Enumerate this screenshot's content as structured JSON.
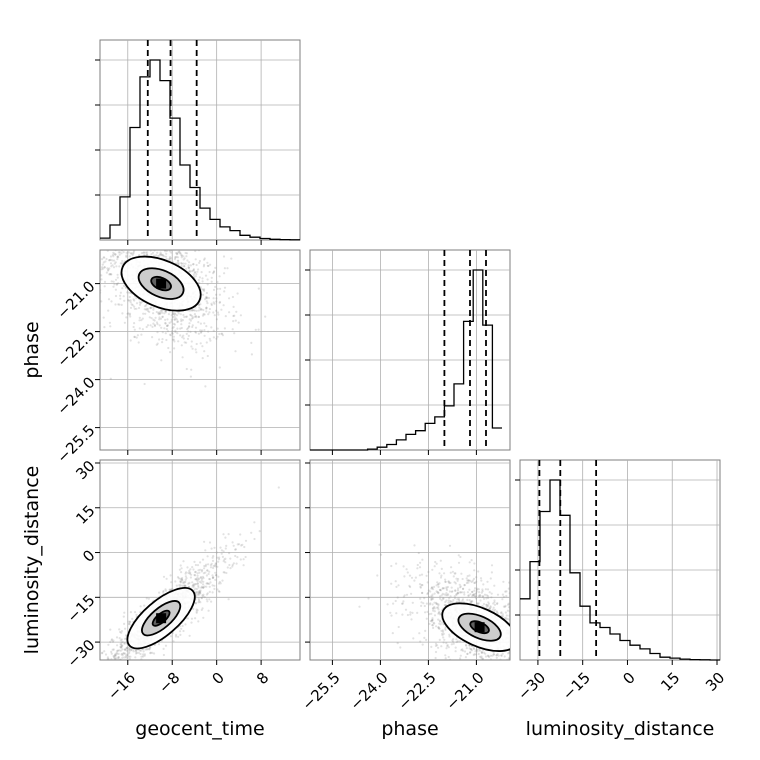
{
  "figure": {
    "type": "corner-plot"
  },
  "colors": {
    "line": "#000000",
    "grid": "#b0b0b0",
    "frame": "#7f7f7f",
    "points": "#8c8c8c"
  },
  "chart_data": {
    "type": "corner",
    "parameters": [
      {
        "name": "geocent_time",
        "label": "geocent_time",
        "range": [
          -21,
          15
        ],
        "ticks": [
          -16,
          -8,
          0,
          8
        ],
        "tick_labels": [
          "−16",
          "−8",
          "0",
          "8"
        ],
        "quantiles": [
          -12.4,
          -8.3,
          -3.6
        ],
        "histogram": {
          "edges": [
            -21,
            -19.2,
            -17.4,
            -15.6,
            -13.8,
            -12,
            -10.2,
            -8.4,
            -6.6,
            -4.8,
            -3,
            -1.2,
            0.6,
            2.4,
            4.2,
            6,
            7.8,
            9.6,
            11.4,
            13.2,
            15
          ],
          "counts": [
            0.01,
            0.08,
            0.23,
            0.6,
            0.87,
            0.96,
            0.85,
            0.65,
            0.4,
            0.28,
            0.17,
            0.11,
            0.07,
            0.05,
            0.025,
            0.015,
            0.008,
            0.004,
            0.002,
            0.001
          ]
        }
      },
      {
        "name": "phase",
        "label": "phase",
        "range": [
          -26.2,
          -19.95
        ],
        "ticks": [
          -25.5,
          -24.0,
          -22.5,
          -21.0
        ],
        "tick_labels": [
          "−25.5",
          "−24.0",
          "−22.5",
          "−21.0"
        ],
        "quantiles": [
          -22.0,
          -21.2,
          -20.7
        ],
        "histogram": {
          "edges": [
            -26.2,
            -25.9,
            -25.6,
            -25.3,
            -25.0,
            -24.7,
            -24.4,
            -24.1,
            -23.8,
            -23.5,
            -23.2,
            -22.9,
            -22.6,
            -22.3,
            -22.0,
            -21.7,
            -21.4,
            -21.1,
            -20.8,
            -20.5,
            -20.2
          ],
          "counts": [
            0.0,
            0.0,
            0.0,
            0.0,
            0.0,
            0.0,
            0.005,
            0.015,
            0.03,
            0.055,
            0.085,
            0.105,
            0.145,
            0.18,
            0.24,
            0.36,
            0.7,
            0.98,
            0.68,
            0.12
          ]
        }
      },
      {
        "name": "luminosity_distance",
        "label": "luminosity_distance",
        "range": [
          -36,
          31
        ],
        "ticks": [
          -30,
          -15,
          0,
          15,
          30
        ],
        "tick_labels": [
          "−30",
          "−15",
          "0",
          "15",
          "30"
        ],
        "quantiles": [
          -29.5,
          -22.5,
          -10.5
        ],
        "histogram": {
          "edges": [
            -36,
            -32.65,
            -29.3,
            -25.95,
            -22.6,
            -19.25,
            -15.9,
            -12.55,
            -9.2,
            -5.85,
            -2.5,
            0.85,
            4.2,
            7.55,
            10.9,
            14.25,
            17.6,
            20.95,
            24.3,
            27.65,
            31
          ],
          "counts": [
            0.33,
            0.53,
            0.8,
            0.97,
            0.78,
            0.47,
            0.29,
            0.2,
            0.175,
            0.14,
            0.105,
            0.08,
            0.06,
            0.035,
            0.015,
            0.01,
            0.005,
            0.002,
            0.001,
            0.0
          ]
        }
      }
    ],
    "correlations": [
      {
        "x": 0,
        "y": 1,
        "rho": -0.45,
        "mode": [
          -10,
          -21.0
        ],
        "sd": [
          4.5,
          0.75
        ]
      },
      {
        "x": 0,
        "y": 2,
        "rho": 0.9,
        "mode": [
          -10,
          -22
        ],
        "sd": [
          4.5,
          8
        ]
      },
      {
        "x": 1,
        "y": 2,
        "rho": -0.55,
        "mode": [
          -20.9,
          -25
        ],
        "sd": [
          0.8,
          7
        ]
      }
    ],
    "grid": true
  }
}
